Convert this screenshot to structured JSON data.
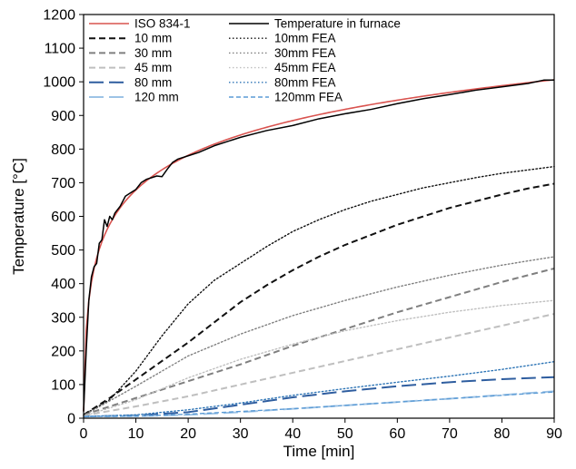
{
  "chart_data": {
    "type": "line",
    "xlabel": "Time [min]",
    "ylabel": "Temperature [°C]",
    "xlim": [
      0,
      90
    ],
    "ylim": [
      0,
      1200
    ],
    "xticks": [
      "0",
      "10",
      "20",
      "30",
      "40",
      "50",
      "60",
      "70",
      "80",
      "90"
    ],
    "yticks": [
      "0",
      "100",
      "200",
      "300",
      "400",
      "500",
      "600",
      "700",
      "800",
      "900",
      "1000",
      "1100",
      "1200"
    ],
    "grid": false,
    "legend": {
      "position": "top-left",
      "columns": 2
    },
    "series": [
      {
        "name": "ISO 834-1",
        "color": "#d9534f",
        "dash": "solid",
        "width": 1.6,
        "legend_col": 0,
        "legend_row": 0,
        "formula": "iso834",
        "x": [
          0,
          5,
          10,
          15,
          20,
          30,
          45,
          60,
          75,
          90
        ]
      },
      {
        "name": "10 mm",
        "color": "#111111",
        "dash": "dash",
        "width": 2,
        "legend_col": 0,
        "legend_row": 1,
        "x": [
          0,
          5,
          10,
          15,
          20,
          25,
          30,
          35,
          40,
          45,
          50,
          55,
          60,
          65,
          70,
          75,
          80,
          85,
          90
        ],
        "y": [
          10,
          60,
          115,
          170,
          225,
          285,
          345,
          395,
          440,
          480,
          515,
          545,
          575,
          600,
          625,
          645,
          665,
          683,
          697
        ]
      },
      {
        "name": "30 mm",
        "color": "#7f7f7f",
        "dash": "dash",
        "width": 2,
        "legend_col": 0,
        "legend_row": 2,
        "x": [
          0,
          10,
          20,
          30,
          40,
          50,
          60,
          70,
          80,
          90
        ],
        "y": [
          10,
          60,
          110,
          160,
          215,
          265,
          315,
          360,
          405,
          445
        ]
      },
      {
        "name": "45 mm",
        "color": "#bfbfbf",
        "dash": "dash",
        "width": 2,
        "legend_col": 0,
        "legend_row": 3,
        "x": [
          0,
          10,
          20,
          30,
          40,
          50,
          60,
          70,
          80,
          90
        ],
        "y": [
          8,
          35,
          65,
          100,
          135,
          170,
          205,
          240,
          275,
          310
        ]
      },
      {
        "name": "80 mm",
        "color": "#2e5d9f",
        "dash": "longdash",
        "width": 2,
        "legend_col": 0,
        "legend_row": 4,
        "x": [
          0,
          10,
          20,
          30,
          40,
          50,
          60,
          70,
          80,
          90
        ],
        "y": [
          5,
          8,
          18,
          40,
          62,
          80,
          95,
          107,
          116,
          122
        ]
      },
      {
        "name": "120 mm",
        "color": "#9dc3e6",
        "dash": "longdash",
        "width": 2,
        "legend_col": 0,
        "legend_row": 5,
        "x": [
          0,
          10,
          20,
          30,
          40,
          50,
          60,
          70,
          80,
          90
        ],
        "y": [
          5,
          6,
          10,
          18,
          28,
          38,
          48,
          58,
          69,
          80
        ]
      },
      {
        "name": "Temperature in furnace",
        "color": "#000000",
        "dash": "solid",
        "width": 1.5,
        "legend_col": 1,
        "legend_row": 0,
        "x": [
          0,
          0.5,
          1,
          1.5,
          2,
          2.5,
          3,
          3.5,
          4,
          4.5,
          5,
          5.5,
          6,
          7,
          8,
          9,
          10,
          11,
          12,
          13,
          14,
          15,
          16,
          17,
          18,
          20,
          22,
          25,
          28,
          30,
          35,
          40,
          45,
          50,
          55,
          60,
          65,
          70,
          75,
          80,
          85,
          88,
          90
        ],
        "y": [
          20,
          200,
          350,
          420,
          450,
          460,
          520,
          530,
          590,
          570,
          600,
          590,
          610,
          630,
          660,
          670,
          680,
          700,
          710,
          715,
          720,
          718,
          740,
          760,
          770,
          780,
          790,
          810,
          825,
          835,
          855,
          870,
          890,
          905,
          918,
          935,
          950,
          962,
          975,
          985,
          995,
          1005,
          1005
        ]
      },
      {
        "name": "10mm FEA",
        "color": "#111111",
        "dash": "dot",
        "width": 1.4,
        "legend_col": 1,
        "legend_row": 1,
        "x": [
          0,
          5,
          10,
          15,
          20,
          25,
          30,
          35,
          40,
          45,
          50,
          55,
          60,
          65,
          70,
          75,
          80,
          85,
          90
        ],
        "y": [
          10,
          55,
          140,
          245,
          340,
          410,
          460,
          510,
          555,
          590,
          620,
          645,
          665,
          685,
          700,
          715,
          728,
          738,
          748
        ]
      },
      {
        "name": "30mm FEA",
        "color": "#7f7f7f",
        "dash": "dot",
        "width": 1.4,
        "legend_col": 1,
        "legend_row": 2,
        "x": [
          0,
          10,
          20,
          30,
          40,
          50,
          60,
          70,
          80,
          90
        ],
        "y": [
          8,
          95,
          185,
          250,
          305,
          350,
          390,
          425,
          455,
          480
        ]
      },
      {
        "name": "45mm FEA",
        "color": "#bfbfbf",
        "dash": "dot",
        "width": 1.4,
        "legend_col": 1,
        "legend_row": 3,
        "x": [
          0,
          10,
          20,
          30,
          40,
          50,
          60,
          70,
          80,
          90
        ],
        "y": [
          6,
          55,
          120,
          175,
          220,
          260,
          290,
          315,
          335,
          350
        ]
      },
      {
        "name": "80mm FEA",
        "color": "#2e75b6",
        "dash": "dot",
        "width": 1.4,
        "legend_col": 1,
        "legend_row": 4,
        "x": [
          0,
          10,
          20,
          30,
          40,
          50,
          60,
          70,
          80,
          90
        ],
        "y": [
          5,
          10,
          25,
          45,
          68,
          88,
          107,
          125,
          145,
          168
        ]
      },
      {
        "name": "120mm FEA",
        "color": "#5b9bd5",
        "dash": "shortdash",
        "width": 1.4,
        "legend_col": 1,
        "legend_row": 5,
        "x": [
          0,
          10,
          20,
          30,
          40,
          50,
          60,
          70,
          80,
          90
        ],
        "y": [
          5,
          6,
          12,
          20,
          28,
          38,
          48,
          58,
          68,
          78
        ]
      }
    ]
  }
}
